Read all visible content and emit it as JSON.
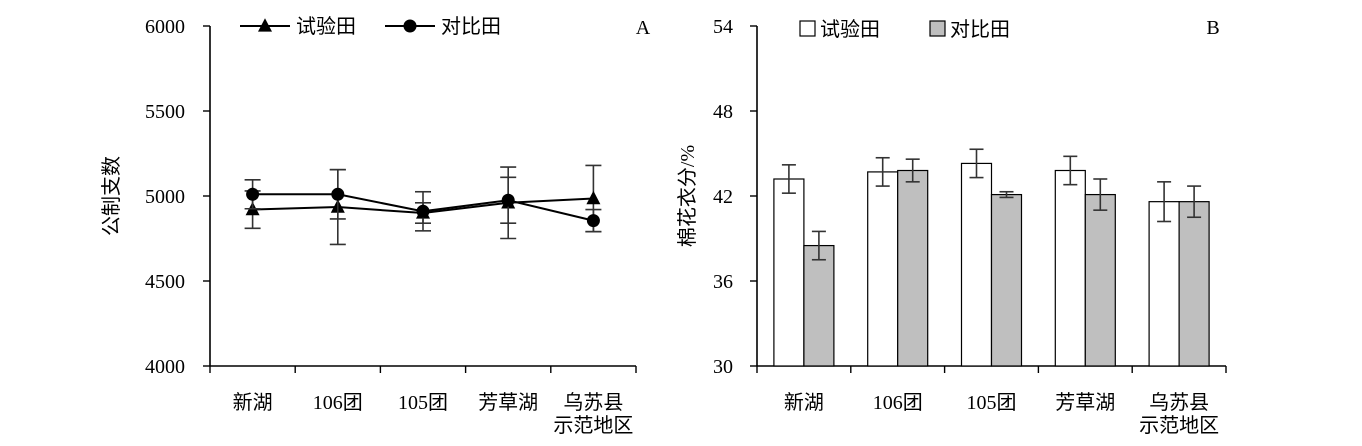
{
  "chart_data": [
    {
      "id": "A",
      "type": "line",
      "panel_label": "A",
      "ylabel": "公制支数",
      "ylim": [
        4000,
        6000
      ],
      "yticks": [
        4000,
        4500,
        5000,
        5500,
        6000
      ],
      "categories": [
        "新湖",
        "106团",
        "105团",
        "芳草湖",
        "乌苏县\n示范地区"
      ],
      "legend_position": "top-left",
      "series": [
        {
          "name": "试验田",
          "marker": "triangle",
          "values": [
            4920,
            4935,
            4900,
            4960,
            4985
          ],
          "error": [
            110,
            220,
            60,
            210,
            195
          ]
        },
        {
          "name": "对比田",
          "marker": "circle",
          "values": [
            5010,
            5010,
            4910,
            4975,
            4855
          ],
          "error": [
            85,
            145,
            115,
            135,
            65
          ]
        }
      ],
      "grid": false
    },
    {
      "id": "B",
      "type": "bar",
      "panel_label": "B",
      "ylabel": "棉花衣分/%",
      "ylim": [
        30,
        54
      ],
      "yticks": [
        30,
        36,
        42,
        48,
        54
      ],
      "categories": [
        "新湖",
        "106团",
        "105团",
        "芳草湖",
        "乌苏县\n示范地区"
      ],
      "legend_position": "top-left",
      "series": [
        {
          "name": "试验田",
          "color": "#ffffff",
          "values": [
            43.2,
            43.7,
            44.3,
            43.8,
            41.6
          ],
          "error": [
            1.0,
            1.0,
            1.0,
            1.0,
            1.4
          ]
        },
        {
          "name": "对比田",
          "color": "#bfbfbf",
          "values": [
            38.5,
            43.8,
            42.1,
            42.1,
            41.6
          ],
          "error": [
            1.0,
            0.8,
            0.2,
            1.1,
            1.1
          ]
        }
      ],
      "grid": false
    }
  ]
}
